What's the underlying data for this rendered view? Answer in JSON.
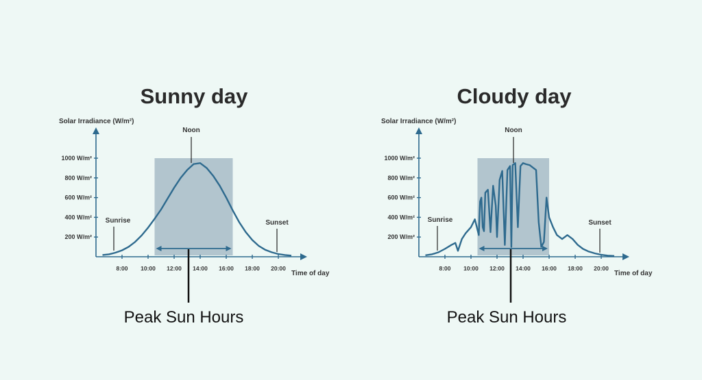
{
  "chart_data": [
    {
      "type": "line",
      "title": "Sunny day",
      "ylabel": "Solar Irradiance (W/m²)",
      "xlabel": "Time of day",
      "y_ticks": [
        "200 W/m²",
        "400 W/m²",
        "600 W/m²",
        "800 W/m²",
        "1000 W/m²"
      ],
      "x_ticks": [
        "8:00",
        "10:00",
        "12:00",
        "14:00",
        "16:00",
        "18:00",
        "20:00"
      ],
      "annotations": {
        "sunrise": "Sunrise",
        "sunset": "Sunset",
        "noon": "Noon",
        "peak": "Peak Sun Hours"
      },
      "peak_range": [
        "10:30",
        "16:30"
      ],
      "x": [
        6.5,
        7.0,
        7.5,
        8.0,
        8.5,
        9.0,
        9.5,
        10.0,
        10.5,
        11.0,
        11.5,
        12.0,
        12.5,
        13.0,
        13.5,
        14.0,
        14.5,
        15.0,
        15.5,
        16.0,
        16.5,
        17.0,
        17.5,
        18.0,
        18.5,
        19.0,
        19.5,
        20.0,
        20.5,
        21.0
      ],
      "values": [
        18,
        25,
        42,
        65,
        100,
        150,
        215,
        295,
        385,
        480,
        590,
        700,
        800,
        880,
        940,
        950,
        900,
        820,
        720,
        600,
        470,
        350,
        250,
        170,
        110,
        70,
        45,
        28,
        18,
        12
      ],
      "ylim": [
        0,
        1000
      ]
    },
    {
      "type": "line",
      "title": "Cloudy day",
      "ylabel": "Solar Irradiance (W/m²)",
      "xlabel": "Time of day",
      "y_ticks": [
        "200 W/m²",
        "400 W/m²",
        "600 W/m²",
        "800 W/m²",
        "1000 W/m²"
      ],
      "x_ticks": [
        "8:00",
        "10:00",
        "12:00",
        "14:00",
        "16:00",
        "18:00",
        "20:00"
      ],
      "annotations": {
        "sunrise": "Sunrise",
        "sunset": "Sunset",
        "noon": "Noon",
        "peak": "Peak Sun Hours"
      },
      "peak_range": [
        "10:30",
        "16:00"
      ],
      "x": [
        6.5,
        7.0,
        7.5,
        8.0,
        8.5,
        8.8,
        9.0,
        9.3,
        9.6,
        10.0,
        10.3,
        10.6,
        10.7,
        10.8,
        10.9,
        11.0,
        11.1,
        11.3,
        11.5,
        11.7,
        11.9,
        12.0,
        12.2,
        12.4,
        12.6,
        12.8,
        13.0,
        13.1,
        13.2,
        13.4,
        13.6,
        13.8,
        14.0,
        14.2,
        14.5,
        15.0,
        15.2,
        15.4,
        15.6,
        15.8,
        16.0,
        16.3,
        16.6,
        17.0,
        17.4,
        17.8,
        18.2,
        18.6,
        19.0,
        19.5,
        20.0,
        20.5,
        21.0
      ],
      "values": [
        15,
        25,
        45,
        80,
        120,
        140,
        60,
        180,
        240,
        300,
        380,
        220,
        560,
        600,
        300,
        260,
        650,
        680,
        250,
        720,
        520,
        200,
        780,
        870,
        120,
        880,
        920,
        100,
        930,
        950,
        300,
        920,
        950,
        940,
        930,
        880,
        350,
        100,
        150,
        600,
        400,
        300,
        220,
        180,
        220,
        180,
        120,
        80,
        55,
        35,
        20,
        12,
        8
      ],
      "ylim": [
        0,
        1000
      ]
    }
  ]
}
